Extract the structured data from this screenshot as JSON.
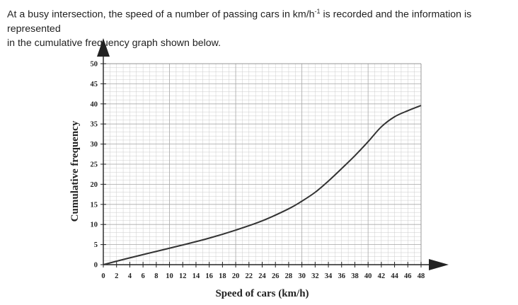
{
  "question": {
    "line1_pre": "At a busy intersection, the speed of a number of passing cars in km/h",
    "line1_sup": "-1",
    "line1_post": " is recorded and the information is represented",
    "line2": "in the cumulative frequency graph shown below."
  },
  "chart_data": {
    "type": "line",
    "xlabel": "Speed of cars (km/h)",
    "ylabel": "Cumulative frequency",
    "xlim": [
      0,
      48
    ],
    "ylim": [
      0,
      50
    ],
    "x_ticks": [
      0,
      2,
      4,
      6,
      8,
      10,
      12,
      14,
      16,
      18,
      20,
      22,
      24,
      26,
      28,
      30,
      32,
      34,
      36,
      38,
      40,
      42,
      44,
      46,
      48
    ],
    "y_ticks": [
      0,
      5,
      10,
      15,
      20,
      25,
      30,
      35,
      40,
      45,
      50
    ],
    "grid": true,
    "series": [
      {
        "x": [
          0,
          4,
          8,
          12,
          16,
          20,
          24,
          28,
          30,
          32,
          34,
          36,
          38,
          40,
          42,
          44,
          46,
          48
        ],
        "y": [
          0,
          1.7,
          3.3,
          4.9,
          6.6,
          8.6,
          10.9,
          13.9,
          15.8,
          18.0,
          20.8,
          23.9,
          27.1,
          30.6,
          34.3,
          36.8,
          38.3,
          39.6
        ]
      }
    ]
  },
  "colors": {
    "line": "#333333",
    "grid": "#cccccc",
    "axis": "#222222"
  }
}
